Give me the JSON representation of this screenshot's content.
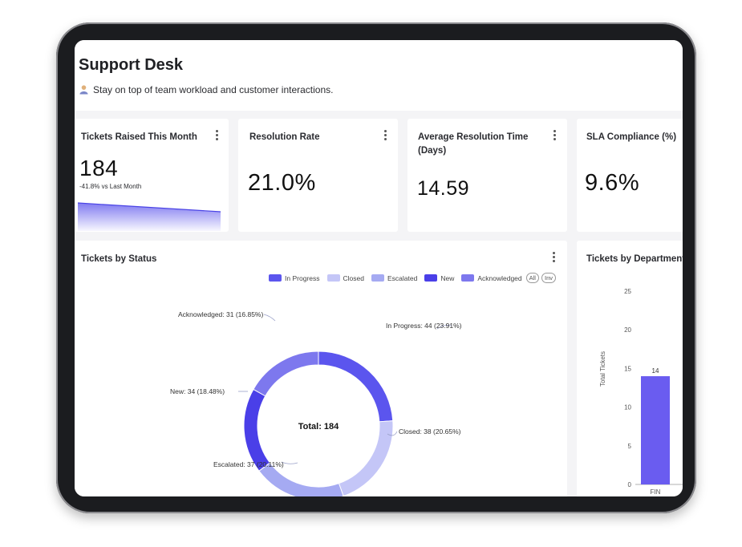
{
  "header": {
    "title": "Support Desk",
    "subtitle": "Stay on top of team workload and customer interactions."
  },
  "kpis": [
    {
      "title": "Tickets Raised This Month",
      "value": "184",
      "delta": "-41.8% vs Last Month"
    },
    {
      "title": "Resolution Rate",
      "value": "21.0%"
    },
    {
      "title_line1": "Average Resolution Time",
      "title_line2": "(Days)",
      "value": "14.59"
    },
    {
      "title": "SLA Compliance (%)",
      "value": "9.6%"
    }
  ],
  "status_chart": {
    "title": "Tickets by Status",
    "legend": [
      "In Progress",
      "Closed",
      "Escalated",
      "New",
      "Acknowledged"
    ],
    "legend_all": "All",
    "legend_inv": "Inv",
    "center_label": "Total: 184",
    "labels": {
      "in_progress": "In Progress: 44 (23.91%)",
      "closed": "Closed: 38 (20.65%)",
      "escalated": "Escalated: 37 (20.11%)",
      "new": "New: 34 (18.48%)",
      "acknowledged": "Acknowledged: 31 (16.85%)"
    },
    "colors": {
      "in_progress": "#5b55ee",
      "closed": "#c4c6f7",
      "escalated": "#a5aaf2",
      "new": "#4a3fe8",
      "acknowledged": "#7d78ee"
    }
  },
  "dept_chart": {
    "title": "Tickets by Department",
    "ylabel": "Total Tickets",
    "yticks": [
      "25",
      "20",
      "15",
      "10",
      "5",
      "0"
    ],
    "category": "FIN",
    "value_label": "14"
  },
  "chart_data": [
    {
      "type": "pie",
      "title": "Tickets by Status",
      "categories": [
        "In Progress",
        "Closed",
        "Escalated",
        "New",
        "Acknowledged"
      ],
      "values": [
        44,
        38,
        37,
        34,
        31
      ],
      "percent": [
        23.91,
        20.65,
        20.11,
        18.48,
        16.85
      ],
      "total": 184,
      "legend": "top-right"
    },
    {
      "type": "bar",
      "title": "Tickets by Department",
      "categories": [
        "FIN"
      ],
      "values": [
        14
      ],
      "ylabel": "Total Tickets",
      "ylim": [
        0,
        25
      ]
    },
    {
      "type": "area",
      "trend": "declining",
      "change": "-41.8%"
    }
  ]
}
